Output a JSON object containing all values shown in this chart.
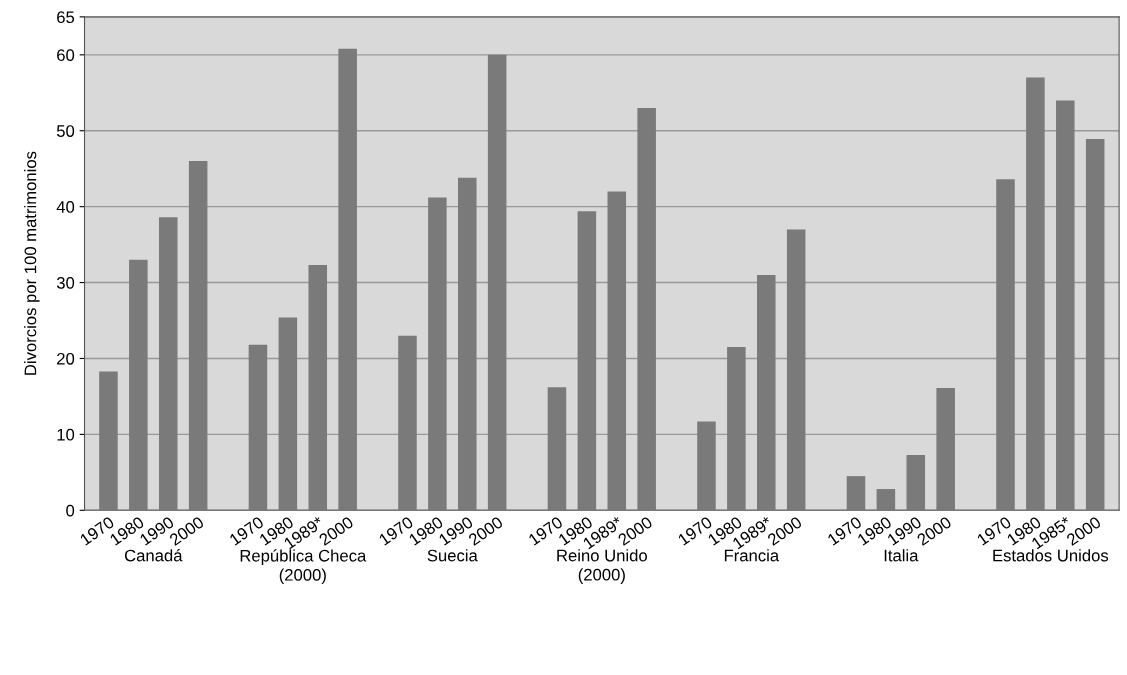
{
  "chart_data": {
    "type": "bar",
    "ylabel": "Divorcios por 100 matrimonios",
    "categories": [
      "1970",
      "1980",
      "1990",
      "2000",
      null,
      "1970",
      "1980",
      "1989*",
      "2000",
      null,
      "1970",
      "1980",
      "1990",
      "2000",
      null,
      "1970",
      "1980",
      "1989*",
      "2000",
      null,
      "1970",
      "1980",
      "1989*",
      "2000",
      null,
      "1970",
      "1980",
      "1990",
      "2000",
      null,
      "1970",
      "1980",
      "1985*",
      "2000"
    ],
    "values": [
      18.3,
      33,
      38.6,
      46,
      null,
      21.8,
      25.4,
      32.3,
      60.8,
      null,
      23,
      41.2,
      43.8,
      60,
      null,
      16.2,
      39.4,
      42,
      53,
      null,
      11.7,
      21.5,
      31,
      37,
      null,
      4.5,
      2.8,
      7.3,
      16.1,
      null,
      43.6,
      57,
      54,
      48.9
    ],
    "color": "#7a7a7a",
    "annotations": [
      "Canadá",
      "República Checa\n(2000)",
      "Suecia",
      "Reino Unido\n(2000)",
      "Francia",
      "Italia",
      "Estados Unidos"
    ],
    "ylim": [
      0,
      65
    ],
    "yticks": [
      0,
      10,
      20,
      30,
      40,
      50,
      60,
      65
    ],
    "grid": "y"
  }
}
